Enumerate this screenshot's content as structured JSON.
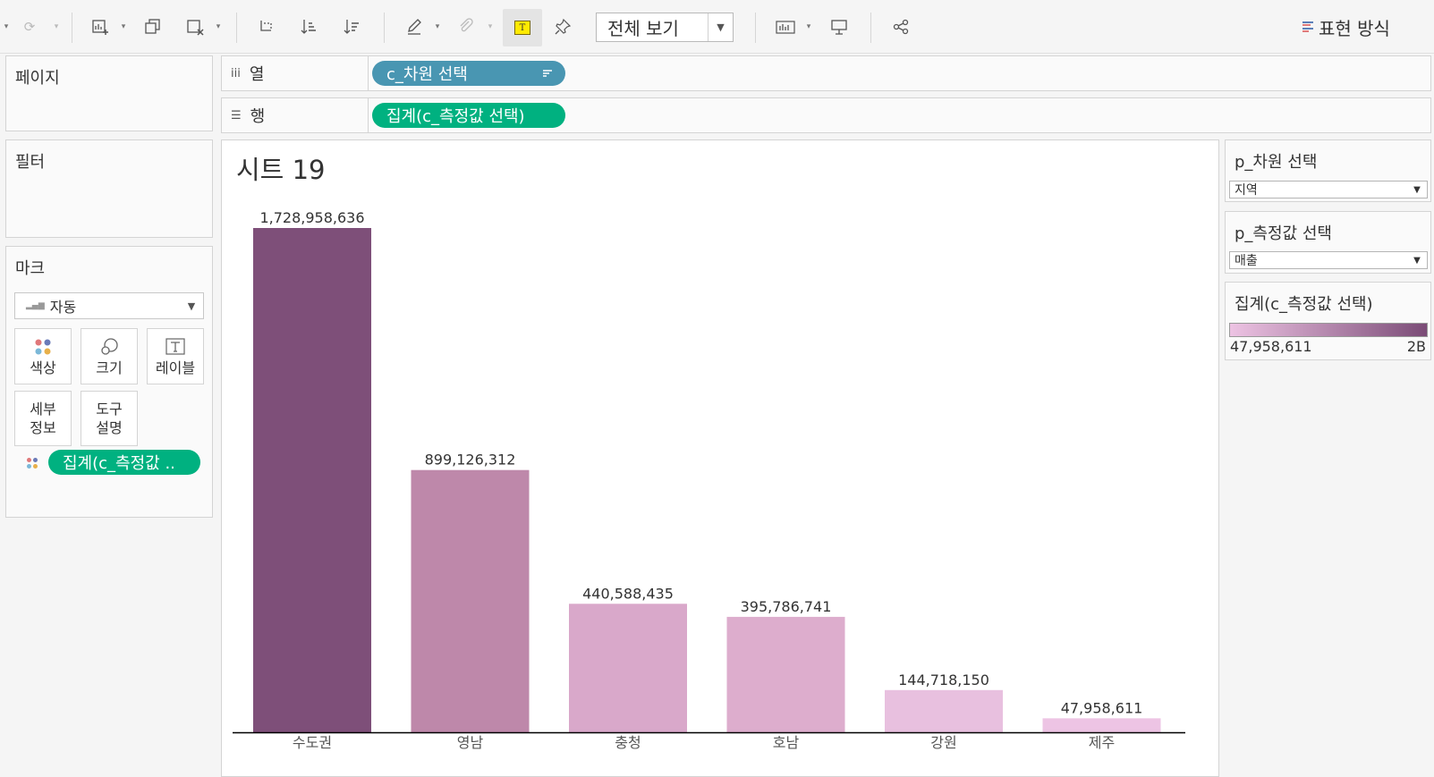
{
  "toolbar": {
    "view_select": "전체 보기",
    "show_me": "표현 방식",
    "icons": [
      "undo-dropdown",
      "redo-icon",
      "new-worksheet-icon",
      "duplicate-sheet-icon",
      "clear-sheet-icon",
      "swap-icon",
      "sort-ascending-icon",
      "sort-descending-icon",
      "highlight-icon",
      "group-icon",
      "show-mark-labels-icon",
      "pin-icon",
      "show-cards-icon",
      "presentation-icon",
      "share-icon"
    ]
  },
  "pages_panel": {
    "title": "페이지"
  },
  "filters_panel": {
    "title": "필터"
  },
  "marks_panel": {
    "title": "마크",
    "mark_type": "자동",
    "buttons": {
      "color": "색상",
      "size": "크기",
      "label": "레이블",
      "detail": "세부\n정보",
      "tooltip": "도구\n설명"
    },
    "pill": "집계(c_측정값 .."
  },
  "shelves": {
    "columns": {
      "label": "열",
      "pill": "c_차원 선택"
    },
    "rows": {
      "label": "행",
      "pill": "집계(c_측정값 선택)"
    }
  },
  "sheet": {
    "title": "시트 19"
  },
  "parameters": {
    "dimension": {
      "title": "p_차원 선택",
      "value": "지역"
    },
    "measure": {
      "title": "p_측정값 선택",
      "value": "매출"
    }
  },
  "legend": {
    "title": "집계(c_측정값 선택)",
    "min_label": "47,958,611",
    "max_label": "2B",
    "color_min": "#edc3e3",
    "color_max": "#7b4c77"
  },
  "chart_data": {
    "type": "bar",
    "categories": [
      "수도권",
      "영남",
      "충청",
      "호남",
      "강원",
      "제주"
    ],
    "values": [
      1728958636,
      899126312,
      440588435,
      395786741,
      144718150,
      47958611
    ],
    "data_labels": [
      "1,728,958,636",
      "899,126,312",
      "440,588,435",
      "395,786,741",
      "144,718,150",
      "47,958,611"
    ],
    "colors": [
      "#7e4f79",
      "#be88aa",
      "#d9a8ca",
      "#ddadcd",
      "#e8c0df",
      "#edc4e4"
    ],
    "ylim": [
      0,
      1728958636
    ]
  }
}
